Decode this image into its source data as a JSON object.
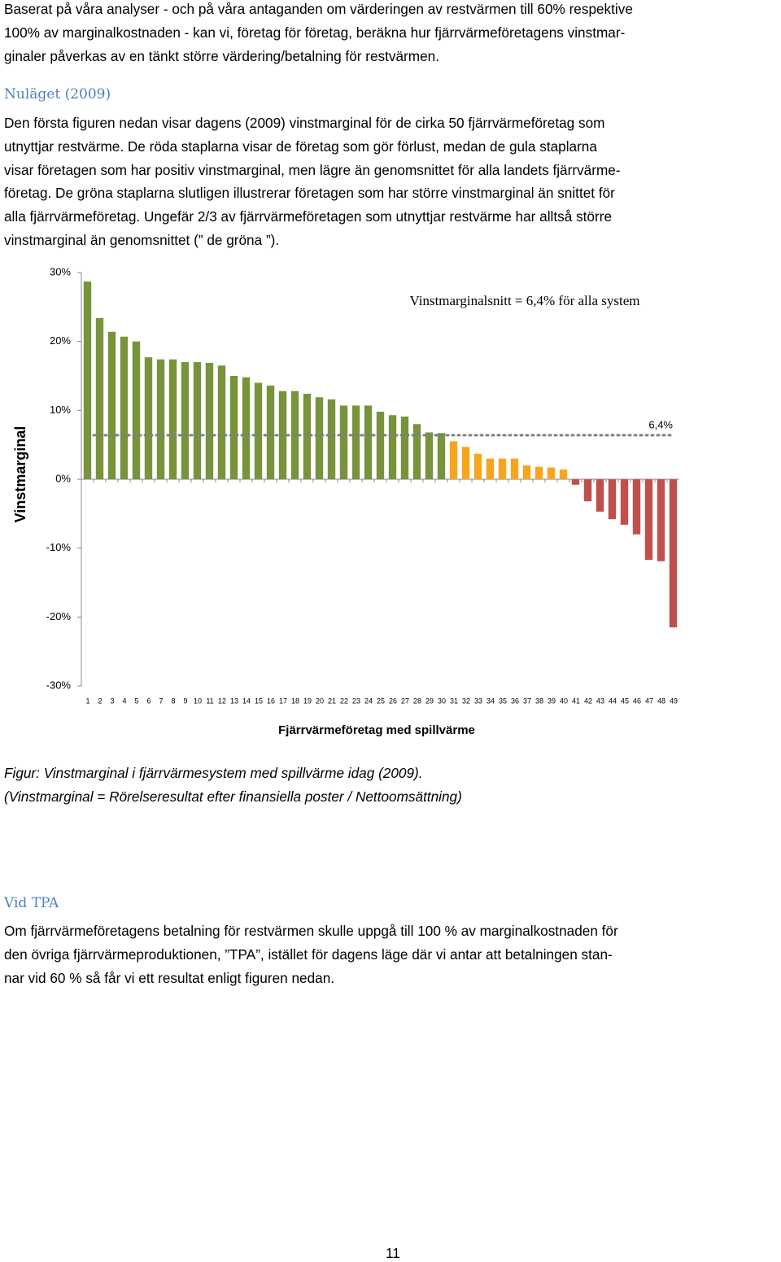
{
  "intro_lines": [
    "Baserat på våra analyser - och på våra antaganden om värderingen av restvärmen till 60% respektive",
    "100% av marginalkostnaden - kan vi, företag för företag, beräkna hur fjärrvärmeföretagens vinstmar-",
    "ginaler påverkas av en tänkt större värdering/betalning för restvärmen."
  ],
  "section1": {
    "heading": "Nuläget (2009)",
    "lines": [
      "Den första figuren nedan visar dagens (2009) vinstmarginal för de cirka 50 fjärrvärmeföretag som",
      "utnyttjar restvärme. De röda staplarna visar de företag som gör förlust, medan de gula staplarna",
      "visar företagen som har positiv vinstmarginal, men lägre än genomsnittet för alla landets fjärrvärme-",
      "företag. De gröna staplarna slutligen illustrerar företagen som har större vinstmarginal än snittet för",
      "alla fjärrvärmeföretag. Ungefär 2/3 av fjärrvärmeföretagen som utnyttjar restvärme har alltså större",
      "vinstmarginal än genomsnittet (” de gröna ”)."
    ]
  },
  "chart_data": {
    "type": "bar",
    "annotation": "Vinstmarginalsnitt = 6,4% för alla system",
    "x_label": "Fjärrvärmeföretag med spillvärme",
    "y_label": "Vinstmarginal",
    "categories": [
      "1",
      "2",
      "3",
      "4",
      "5",
      "6",
      "7",
      "8",
      "9",
      "10",
      "11",
      "12",
      "13",
      "14",
      "15",
      "16",
      "17",
      "18",
      "19",
      "20",
      "21",
      "22",
      "23",
      "24",
      "25",
      "26",
      "27",
      "28",
      "29",
      "30",
      "31",
      "32",
      "33",
      "34",
      "35",
      "36",
      "37",
      "38",
      "39",
      "40",
      "41",
      "42",
      "43",
      "44",
      "45",
      "46",
      "47",
      "48",
      "49"
    ],
    "values": [
      28.7,
      23.4,
      21.4,
      20.7,
      20.0,
      17.7,
      17.4,
      17.4,
      17.0,
      17.0,
      16.9,
      16.5,
      15.0,
      14.8,
      14.0,
      13.6,
      12.8,
      12.8,
      12.4,
      11.9,
      11.6,
      10.7,
      10.7,
      10.7,
      9.8,
      9.3,
      9.1,
      8.0,
      6.8,
      6.7,
      5.5,
      4.7,
      3.7,
      3.0,
      3.0,
      3.0,
      2.0,
      1.8,
      1.7,
      1.4,
      -0.8,
      -3.2,
      -4.7,
      -5.8,
      -6.6,
      -8.0,
      -11.7,
      -11.9,
      -21.5
    ],
    "colors": {
      "above_average": "#77933c",
      "below_average": "#f7a51d",
      "negative": "#c0504d"
    },
    "reference": {
      "value": 6.4,
      "label": "6,4%",
      "color": "#7f7f7f"
    },
    "ylim": [
      -30,
      30
    ],
    "yticks": [
      {
        "value": -30,
        "label": "-30%"
      },
      {
        "value": -20,
        "label": "-20%"
      },
      {
        "value": -10,
        "label": "-10%"
      },
      {
        "value": 0,
        "label": "0%"
      },
      {
        "value": 10,
        "label": "10%"
      },
      {
        "value": 20,
        "label": "20%"
      },
      {
        "value": 30,
        "label": "30%"
      }
    ],
    "grid": false
  },
  "caption_lines": [
    "Figur: Vinstmarginal i fjärrvärmesystem med spillvärme idag (2009).",
    "(Vinstmarginal = Rörelseresultat efter finansiella poster / Nettoomsättning)"
  ],
  "section2": {
    "heading": "Vid TPA",
    "lines": [
      "Om fjärrvärmeföretagens betalning för restvärmen skulle uppgå till 100 % av marginalkostnaden för",
      "den övriga fjärrvärmeproduktionen, ”TPA”, istället för dagens läge där vi antar att betalningen stan-",
      "nar vid 60 % så får vi ett resultat enligt figuren nedan."
    ]
  },
  "page_number": "11"
}
